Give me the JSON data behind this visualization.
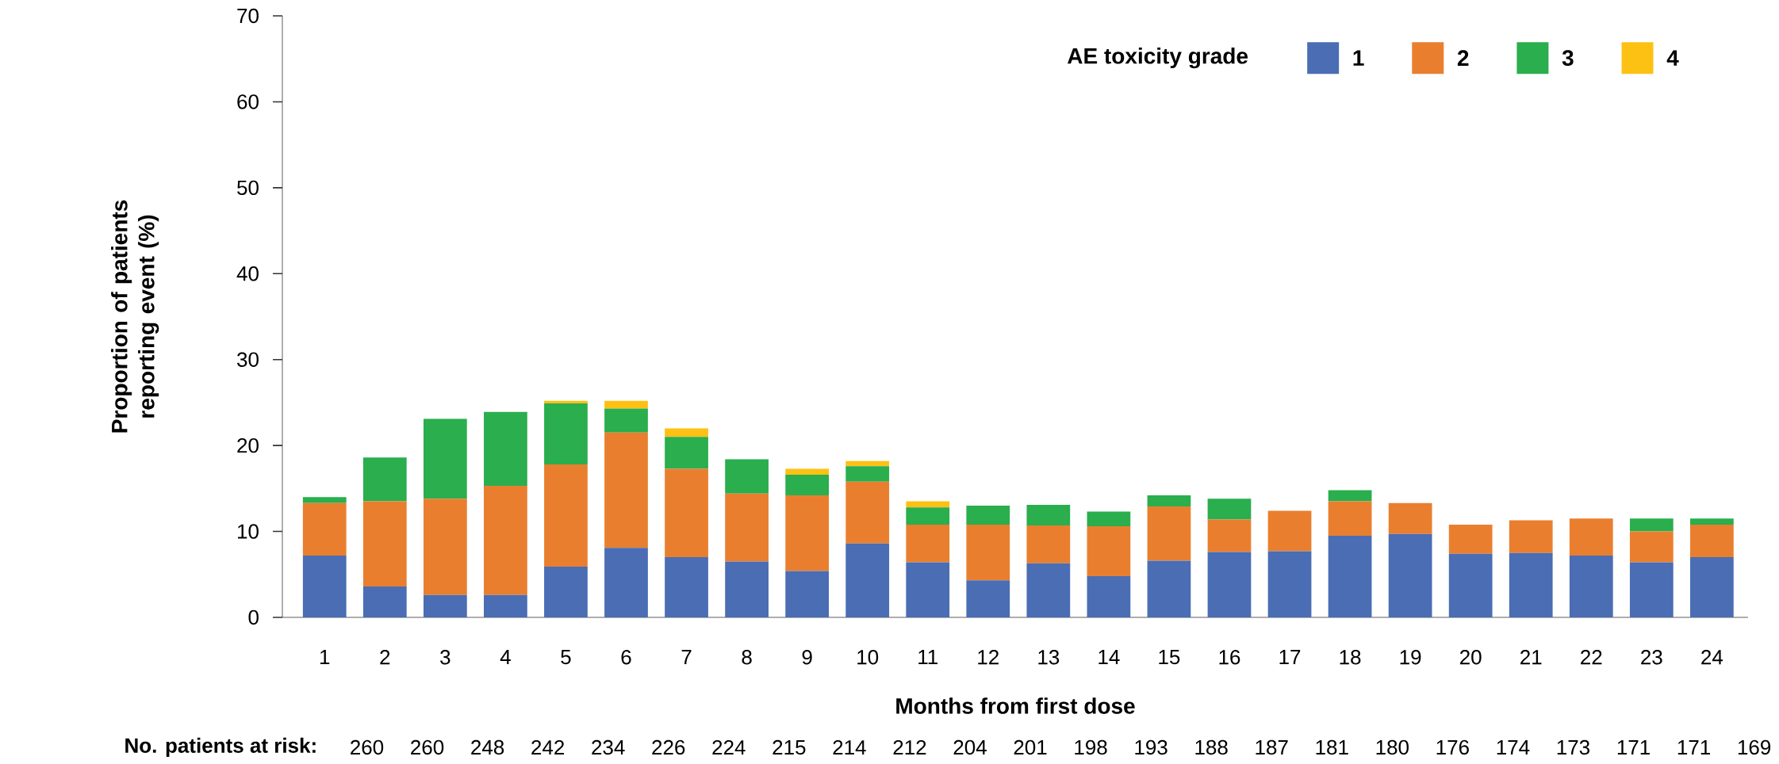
{
  "chart_data": {
    "type": "bar",
    "stacked": true,
    "xlabel": "Months from first dose",
    "ylabel": "Proportion of patients reporting event (%)",
    "legend_title": "AE toxicity grade",
    "legend": "top right",
    "categories": [
      "1",
      "2",
      "3",
      "4",
      "5",
      "6",
      "7",
      "8",
      "9",
      "10",
      "11",
      "12",
      "13",
      "14",
      "15",
      "16",
      "17",
      "18",
      "19",
      "20",
      "21",
      "22",
      "23",
      "24"
    ],
    "series": [
      {
        "name": "1",
        "color": "#4a6db4",
        "values": [
          7.2,
          3.6,
          2.6,
          2.6,
          5.9,
          8.1,
          7.0,
          6.5,
          5.4,
          8.6,
          6.4,
          4.3,
          6.3,
          4.8,
          6.6,
          7.6,
          7.7,
          9.5,
          9.7,
          7.4,
          7.5,
          7.2,
          6.4,
          7.0
        ]
      },
      {
        "name": "2",
        "color": "#e97f2e",
        "values": [
          6.1,
          9.9,
          11.2,
          12.7,
          11.9,
          13.4,
          10.3,
          7.9,
          8.8,
          7.2,
          4.4,
          6.5,
          4.4,
          5.8,
          6.3,
          3.8,
          4.7,
          4.0,
          3.6,
          3.4,
          3.8,
          4.3,
          3.6,
          3.8
        ]
      },
      {
        "name": "3",
        "color": "#2aae4e",
        "values": [
          0.7,
          5.1,
          9.3,
          8.6,
          7.1,
          2.8,
          3.7,
          4.0,
          2.4,
          1.8,
          2.0,
          2.2,
          2.4,
          1.7,
          1.3,
          2.4,
          null,
          1.3,
          null,
          null,
          null,
          null,
          1.5,
          0.7
        ]
      },
      {
        "name": "4",
        "color": "#fdc114",
        "values": [
          null,
          null,
          null,
          null,
          0.3,
          0.9,
          1.0,
          null,
          0.7,
          0.6,
          0.7,
          null,
          null,
          null,
          null,
          null,
          null,
          null,
          null,
          null,
          null,
          null,
          null,
          null
        ]
      }
    ],
    "ylim": [
      0,
      70
    ],
    "yticks": [
      0,
      10,
      20,
      30,
      40,
      50,
      60,
      70
    ],
    "annotations": [
      "No. patients at risk:",
      "260",
      "260",
      "248",
      "242",
      "234",
      "226",
      "224",
      "215",
      "214",
      "212",
      "204",
      "201",
      "198",
      "193",
      "188",
      "187",
      "181",
      "180",
      "176",
      "174",
      "173",
      "171",
      "171",
      "169"
    ]
  }
}
